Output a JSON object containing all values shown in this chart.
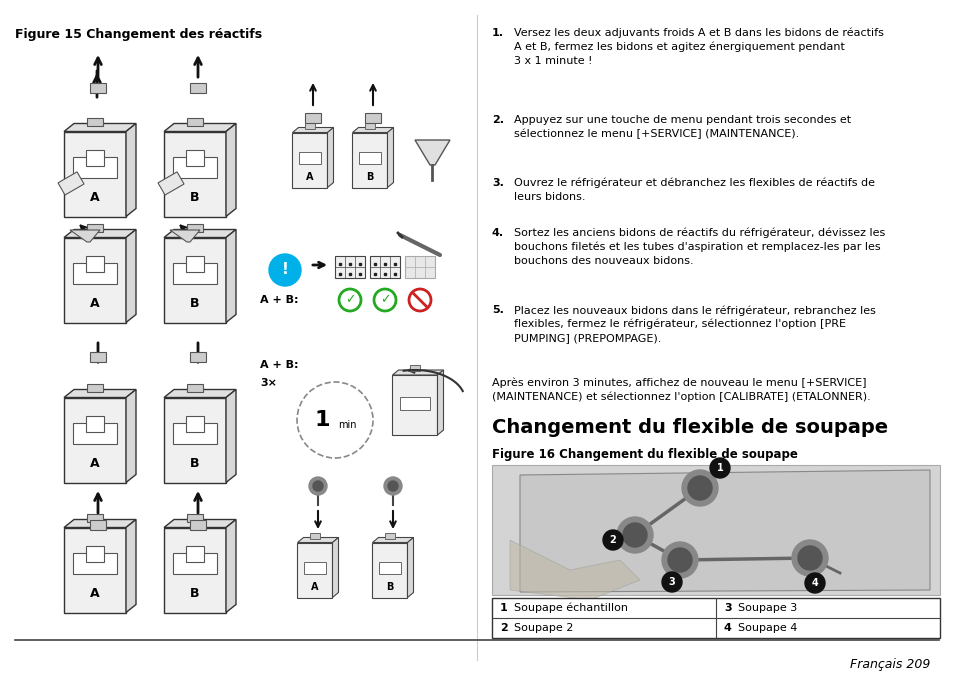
{
  "page_width": 9.54,
  "page_height": 6.74,
  "background_color": "#ffffff",
  "fig_title_left": "Figure 15 Changement des réactifs",
  "section_title": "Changement du flexible de soupape",
  "fig_title_right": "Figure 16 Changement du flexible de soupape",
  "numbered_items": [
    "Versez les deux adjuvants froids A et B dans les bidons de réactifs\nA et B, fermez les bidons et agitez énergiquement pendant\n3 x 1 minute !",
    "Appuyez sur une touche de menu pendant trois secondes et\nsélectionnez le menu [+SERVICE] (MAINTENANCE).",
    "Ouvrez le réfrigérateur et débranchez les flexibles de réactifs de\nleurs bidons.",
    "Sortez les anciens bidons de réactifs du réfrigérateur, dévissez les\nbouchons filetés et les tubes d'aspiration et remplacez-les par les\nbouchons des nouveaux bidons.",
    "Placez les nouveaux bidons dans le réfrigérateur, rebranchez les\nflexibles, fermez le réfrigérateur, sélectionnez l'option [PRE\nPUMPING] (PREPOMPAGE)."
  ],
  "after_para": "Après environ 3 minutes, affichez de nouveau le menu [+SERVICE]\n(MAINTENANCE) et sélectionnez l'option [CALIBRATE] (ETALONNER).",
  "table_data": [
    [
      "1",
      "Soupape échantillon",
      "3",
      "Soupape 3"
    ],
    [
      "2",
      "Soupape 2",
      "4",
      "Soupape 4"
    ]
  ],
  "footer_text": "Français 209",
  "text_color": "#000000",
  "body_fontsize": 8.0,
  "section_title_fontsize": 14,
  "fig_label_fontsize": 8.5
}
